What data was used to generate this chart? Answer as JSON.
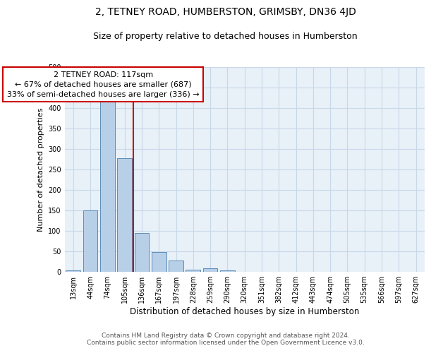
{
  "title": "2, TETNEY ROAD, HUMBERSTON, GRIMSBY, DN36 4JD",
  "subtitle": "Size of property relative to detached houses in Humberston",
  "xlabel": "Distribution of detached houses by size in Humberston",
  "ylabel": "Number of detached properties",
  "categories": [
    "13sqm",
    "44sqm",
    "74sqm",
    "105sqm",
    "136sqm",
    "167sqm",
    "197sqm",
    "228sqm",
    "259sqm",
    "290sqm",
    "320sqm",
    "351sqm",
    "382sqm",
    "412sqm",
    "443sqm",
    "474sqm",
    "505sqm",
    "535sqm",
    "566sqm",
    "597sqm",
    "627sqm"
  ],
  "values": [
    4,
    150,
    420,
    278,
    95,
    48,
    27,
    6,
    9,
    3,
    0,
    0,
    0,
    0,
    0,
    0,
    0,
    0,
    0,
    0,
    0
  ],
  "bar_color": "#b8cfe8",
  "bar_edge_color": "#5b8db8",
  "vline_x": 3.5,
  "vline_color": "#cc0000",
  "annotation_text": "2 TETNEY ROAD: 117sqm\n← 67% of detached houses are smaller (687)\n33% of semi-detached houses are larger (336) →",
  "annotation_box_color": "#ffffff",
  "annotation_box_edge_color": "#cc0000",
  "ylim": [
    0,
    500
  ],
  "yticks": [
    0,
    50,
    100,
    150,
    200,
    250,
    300,
    350,
    400,
    450,
    500
  ],
  "grid_color": "#c8d8e8",
  "bg_color": "#e8f0f8",
  "footer_line1": "Contains HM Land Registry data © Crown copyright and database right 2024.",
  "footer_line2": "Contains public sector information licensed under the Open Government Licence v3.0.",
  "title_fontsize": 10,
  "subtitle_fontsize": 9,
  "xlabel_fontsize": 8.5,
  "ylabel_fontsize": 8,
  "tick_fontsize": 7,
  "annotation_fontsize": 8,
  "footer_fontsize": 6.5
}
